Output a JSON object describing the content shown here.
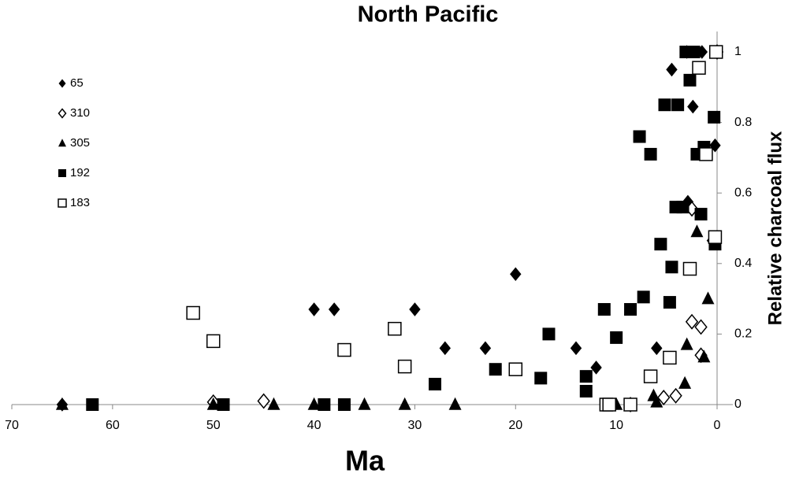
{
  "chart_data": {
    "type": "scatter",
    "title": "North Pacific",
    "x_label": "Ma",
    "y_label": "Relative charcoal flux",
    "xlim": [
      70,
      0
    ],
    "xticks": [
      70,
      60,
      50,
      40,
      30,
      20,
      10,
      0
    ],
    "ylim": [
      0,
      1
    ],
    "yticks": [
      0,
      0.2,
      0.4,
      0.6,
      0.8,
      1
    ],
    "series": [
      {
        "name": "65",
        "marker": "diamond",
        "filled": true,
        "color": "#000000",
        "x": [
          65,
          40,
          38,
          30,
          20,
          27,
          23,
          14,
          12,
          6,
          4.5,
          2.4,
          1.5,
          3,
          0.2,
          2.9
        ],
        "values": [
          0,
          0.27,
          0.27,
          0.27,
          0.37,
          0.16,
          0.16,
          0.16,
          0.105,
          0.16,
          0.95,
          0.845,
          1,
          1,
          0.735,
          0.575
        ]
      },
      {
        "name": "310",
        "marker": "diamond",
        "filled": false,
        "color": "#000000",
        "x": [
          50,
          45,
          5.3,
          4.1,
          2.5,
          1.6,
          1.6,
          2.5,
          0,
          0.4,
          8.6
        ],
        "values": [
          0.007,
          0.01,
          0.02,
          0.025,
          0.235,
          0.22,
          0.14,
          0.555,
          1,
          0.465,
          0
        ]
      },
      {
        "name": "305",
        "marker": "triangle",
        "filled": true,
        "color": "#000000",
        "x": [
          65,
          50,
          44,
          40,
          35,
          31,
          26,
          10,
          6.3,
          6,
          3.2,
          3,
          2,
          0.9,
          1.3
        ],
        "values": [
          0,
          0,
          0,
          0,
          0,
          0,
          0,
          0,
          0.025,
          0.007,
          0.06,
          0.17,
          0.49,
          0.3,
          0.135
        ]
      },
      {
        "name": "192",
        "marker": "square",
        "filled": true,
        "color": "#000000",
        "x": [
          62,
          49,
          39,
          37,
          28,
          22,
          17.5,
          16.7,
          13,
          13,
          11.2,
          10,
          8.6,
          7.3,
          7.7,
          6.6,
          5.6,
          5.2,
          4.5,
          4.7,
          4.1,
          3.4,
          3.9,
          3.1,
          2.7,
          2.3,
          2,
          1.6,
          1.3,
          0.3,
          0.2
        ],
        "values": [
          0,
          0,
          0,
          0,
          0.058,
          0.1,
          0.075,
          0.2,
          0.038,
          0.08,
          0.27,
          0.19,
          0.27,
          0.305,
          0.76,
          0.71,
          0.455,
          0.85,
          0.39,
          0.29,
          0.56,
          0.56,
          0.85,
          1,
          0.92,
          1,
          0.71,
          0.54,
          0.73,
          0.815,
          0.455
        ]
      },
      {
        "name": "183",
        "marker": "square",
        "filled": false,
        "color": "#000000",
        "x": [
          52,
          50,
          37,
          32,
          31,
          20,
          11,
          10.7,
          8.6,
          6.6,
          4.7,
          2.7,
          1.8,
          1.1,
          0.2,
          0.1
        ],
        "values": [
          0.26,
          0.18,
          0.155,
          0.215,
          0.108,
          0.1,
          0,
          0,
          0,
          0.08,
          0.133,
          0.385,
          0.955,
          0.71,
          0.475,
          1
        ]
      }
    ]
  }
}
